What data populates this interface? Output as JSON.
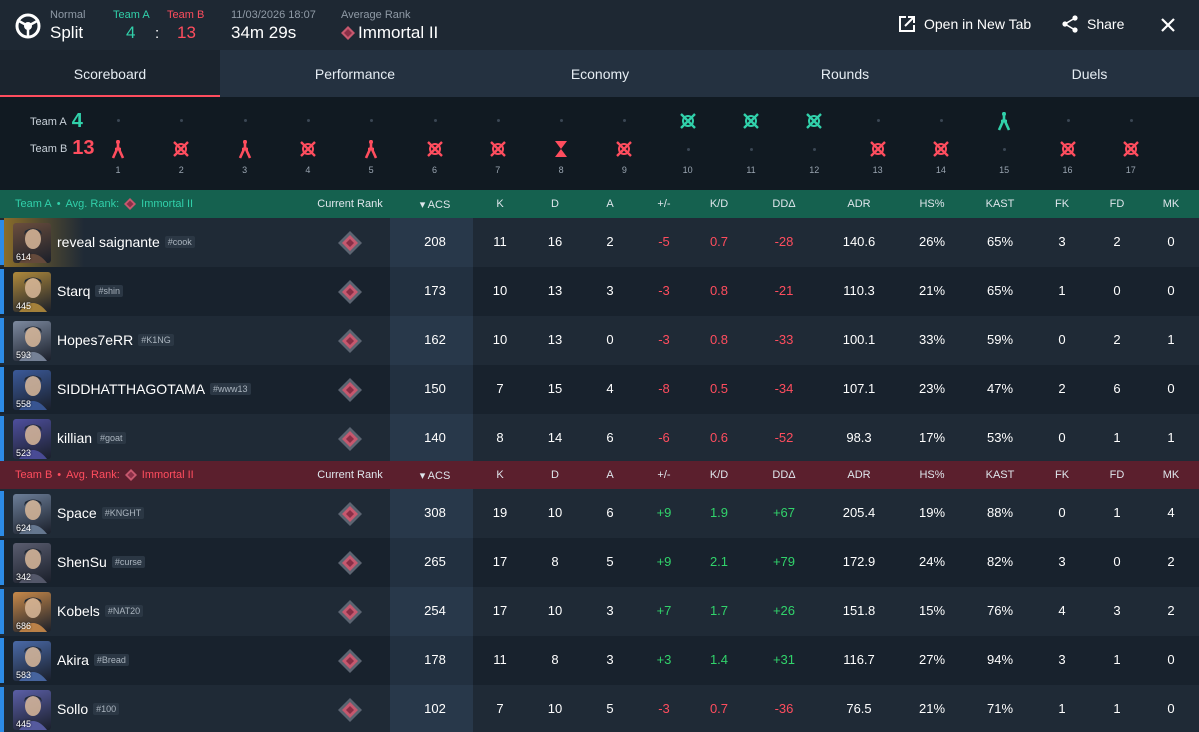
{
  "header": {
    "mode_label": "Normal",
    "map": "Split",
    "teamA_label": "Team A",
    "teamA_score": "4",
    "teamB_label": "Team B",
    "teamB_score": "13",
    "colon": ":",
    "date": "11/03/2026 18:07",
    "duration": "34m 29s",
    "avg_rank_label": "Average Rank",
    "avg_rank": "Immortal II",
    "open_tab_label": "Open in New Tab",
    "share_label": "Share"
  },
  "tabs": [
    "Scoreboard",
    "Performance",
    "Economy",
    "Rounds",
    "Duels"
  ],
  "timeline": {
    "teamA_label": "Team A",
    "teamA_score": "4",
    "teamB_label": "Team B",
    "teamB_score": "13",
    "rounds": [
      {
        "num": "1",
        "winner": "B",
        "type": "defuse-stick"
      },
      {
        "num": "2",
        "winner": "B",
        "type": "elim"
      },
      {
        "num": "3",
        "winner": "B",
        "type": "defuse-stick"
      },
      {
        "num": "4",
        "winner": "B",
        "type": "elim"
      },
      {
        "num": "5",
        "winner": "B",
        "type": "defuse-stick"
      },
      {
        "num": "6",
        "winner": "B",
        "type": "elim"
      },
      {
        "num": "7",
        "winner": "B",
        "type": "elim"
      },
      {
        "num": "8",
        "winner": "B",
        "type": "time"
      },
      {
        "num": "9",
        "winner": "B",
        "type": "elim"
      },
      {
        "num": "10",
        "winner": "A",
        "type": "elim"
      },
      {
        "num": "11",
        "winner": "A",
        "type": "elim"
      },
      {
        "num": "12",
        "winner": "A",
        "type": "elim"
      },
      {
        "num": "13",
        "winner": "B",
        "type": "elim"
      },
      {
        "num": "14",
        "winner": "B",
        "type": "elim"
      },
      {
        "num": "15",
        "winner": "A",
        "type": "defuse-stick"
      },
      {
        "num": "16",
        "winner": "B",
        "type": "elim"
      },
      {
        "num": "17",
        "winner": "B",
        "type": "elim"
      }
    ]
  },
  "columns": {
    "current_rank": "Current Rank",
    "acs": "ACS",
    "k": "K",
    "d": "D",
    "a": "A",
    "pm": "+/-",
    "kd": "K/D",
    "dd": "DDΔ",
    "adr": "ADR",
    "hs": "HS%",
    "kast": "KAST",
    "fk": "FK",
    "fd": "FD",
    "mk": "MK"
  },
  "teamA": {
    "title": "Team A",
    "avg_label": "Avg. Rank:",
    "avg_rank": "Immortal II",
    "players": [
      {
        "name": "reveal saignante",
        "tag": "#cook",
        "level": "614",
        "acs": "208",
        "k": "11",
        "d": "16",
        "a": "2",
        "pm": "-5",
        "kd": "0.7",
        "dd": "-28",
        "adr": "140.6",
        "hs": "26%",
        "kast": "65%",
        "fk": "3",
        "fd": "2",
        "mk": "0"
      },
      {
        "name": "Starq",
        "tag": "#shin",
        "level": "445",
        "acs": "173",
        "k": "10",
        "d": "13",
        "a": "3",
        "pm": "-3",
        "kd": "0.8",
        "dd": "-21",
        "adr": "110.3",
        "hs": "21%",
        "kast": "65%",
        "fk": "1",
        "fd": "0",
        "mk": "0"
      },
      {
        "name": "Hopes7eRR",
        "tag": "#K1NG",
        "level": "593",
        "acs": "162",
        "k": "10",
        "d": "13",
        "a": "0",
        "pm": "-3",
        "kd": "0.8",
        "dd": "-33",
        "adr": "100.1",
        "hs": "33%",
        "kast": "59%",
        "fk": "0",
        "fd": "2",
        "mk": "1"
      },
      {
        "name": "SIDDHATTHAGOTAMA",
        "tag": "#www13",
        "level": "558",
        "acs": "150",
        "k": "7",
        "d": "15",
        "a": "4",
        "pm": "-8",
        "kd": "0.5",
        "dd": "-34",
        "adr": "107.1",
        "hs": "23%",
        "kast": "47%",
        "fk": "2",
        "fd": "6",
        "mk": "0"
      },
      {
        "name": "killian",
        "tag": "#goat",
        "level": "523",
        "acs": "140",
        "k": "8",
        "d": "14",
        "a": "6",
        "pm": "-6",
        "kd": "0.6",
        "dd": "-52",
        "adr": "98.3",
        "hs": "17%",
        "kast": "53%",
        "fk": "0",
        "fd": "1",
        "mk": "1"
      }
    ]
  },
  "teamB": {
    "title": "Team B",
    "avg_label": "Avg. Rank:",
    "avg_rank": "Immortal II",
    "players": [
      {
        "name": "Space",
        "tag": "#KNGHT",
        "level": "624",
        "acs": "308",
        "k": "19",
        "d": "10",
        "a": "6",
        "pm": "+9",
        "kd": "1.9",
        "dd": "+67",
        "adr": "205.4",
        "hs": "19%",
        "kast": "88%",
        "fk": "0",
        "fd": "1",
        "mk": "4"
      },
      {
        "name": "ShenSu",
        "tag": "#curse",
        "level": "342",
        "acs": "265",
        "k": "17",
        "d": "8",
        "a": "5",
        "pm": "+9",
        "kd": "2.1",
        "dd": "+79",
        "adr": "172.9",
        "hs": "24%",
        "kast": "82%",
        "fk": "3",
        "fd": "0",
        "mk": "2"
      },
      {
        "name": "Kobels",
        "tag": "#NAT20",
        "level": "686",
        "acs": "254",
        "k": "17",
        "d": "10",
        "a": "3",
        "pm": "+7",
        "kd": "1.7",
        "dd": "+26",
        "adr": "151.8",
        "hs": "15%",
        "kast": "76%",
        "fk": "4",
        "fd": "3",
        "mk": "2"
      },
      {
        "name": "Akira",
        "tag": "#Bread",
        "level": "583",
        "acs": "178",
        "k": "11",
        "d": "8",
        "a": "3",
        "pm": "+3",
        "kd": "1.4",
        "dd": "+31",
        "adr": "116.7",
        "hs": "27%",
        "kast": "94%",
        "fk": "3",
        "fd": "1",
        "mk": "0"
      },
      {
        "name": "Sollo",
        "tag": "#100",
        "level": "445",
        "acs": "102",
        "k": "7",
        "d": "10",
        "a": "5",
        "pm": "-3",
        "kd": "0.7",
        "dd": "-36",
        "adr": "76.5",
        "hs": "21%",
        "kast": "71%",
        "fk": "1",
        "fd": "1",
        "mk": "0"
      }
    ]
  },
  "colors": {
    "teamA": "#31d0aa",
    "teamB": "#ff4d5e",
    "positive": "#31d36b",
    "negative": "#ff4d5e",
    "accent": "#ff4d5e"
  },
  "icons": {
    "logo": "app-logo-icon",
    "open": "external-link-icon",
    "share": "share-icon",
    "close": "close-icon",
    "rank": "immortal-rank-icon",
    "sort": "sort-desc-icon"
  }
}
